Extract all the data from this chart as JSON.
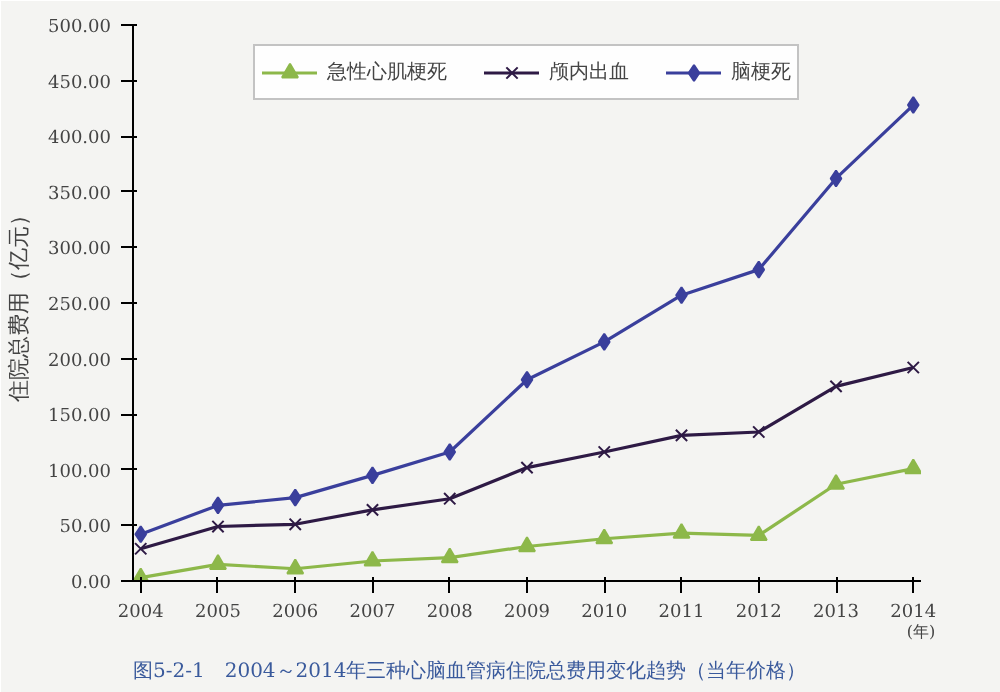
{
  "chart_data": {
    "type": "line",
    "title": "图5-2-1　2004～2014年三种心脑血管病住院总费用变化趋势（当年价格）",
    "ylabel": "住院总费用（亿元）",
    "xlabel": "(年)",
    "categories": [
      "2004",
      "2005",
      "2006",
      "2007",
      "2008",
      "2009",
      "2010",
      "2011",
      "2012",
      "2013",
      "2014"
    ],
    "series": [
      {
        "name": "急性心肌梗死",
        "color": "#8db84a",
        "marker": "triangle",
        "values": [
          3,
          15,
          11,
          18,
          21,
          31,
          38,
          43,
          41,
          87,
          101
        ]
      },
      {
        "name": "颅内出血",
        "color": "#2e1a45",
        "marker": "cross",
        "values": [
          29,
          49,
          51,
          64,
          74,
          102,
          116,
          131,
          134,
          175,
          192
        ]
      },
      {
        "name": "脑梗死",
        "color": "#3a3f9c",
        "marker": "diamond",
        "values": [
          42,
          68,
          75,
          95,
          116,
          181,
          215,
          257,
          280,
          362,
          428
        ]
      }
    ],
    "ylim": [
      0,
      500
    ],
    "yticks": [
      {
        "value": 0,
        "label": "0.00"
      },
      {
        "value": 50,
        "label": "50.00"
      },
      {
        "value": 100,
        "label": "100.00"
      },
      {
        "value": 150,
        "label": "150.00"
      },
      {
        "value": 200,
        "label": "200.00"
      },
      {
        "value": 250,
        "label": "250.00"
      },
      {
        "value": 300,
        "label": "300.00"
      },
      {
        "value": 350,
        "label": "350.00"
      },
      {
        "value": 400,
        "label": "400.00"
      },
      {
        "value": 450,
        "label": "450.00"
      },
      {
        "value": 500,
        "label": "500.00"
      }
    ],
    "legend": "top",
    "grid": false,
    "line_style": "solid"
  }
}
